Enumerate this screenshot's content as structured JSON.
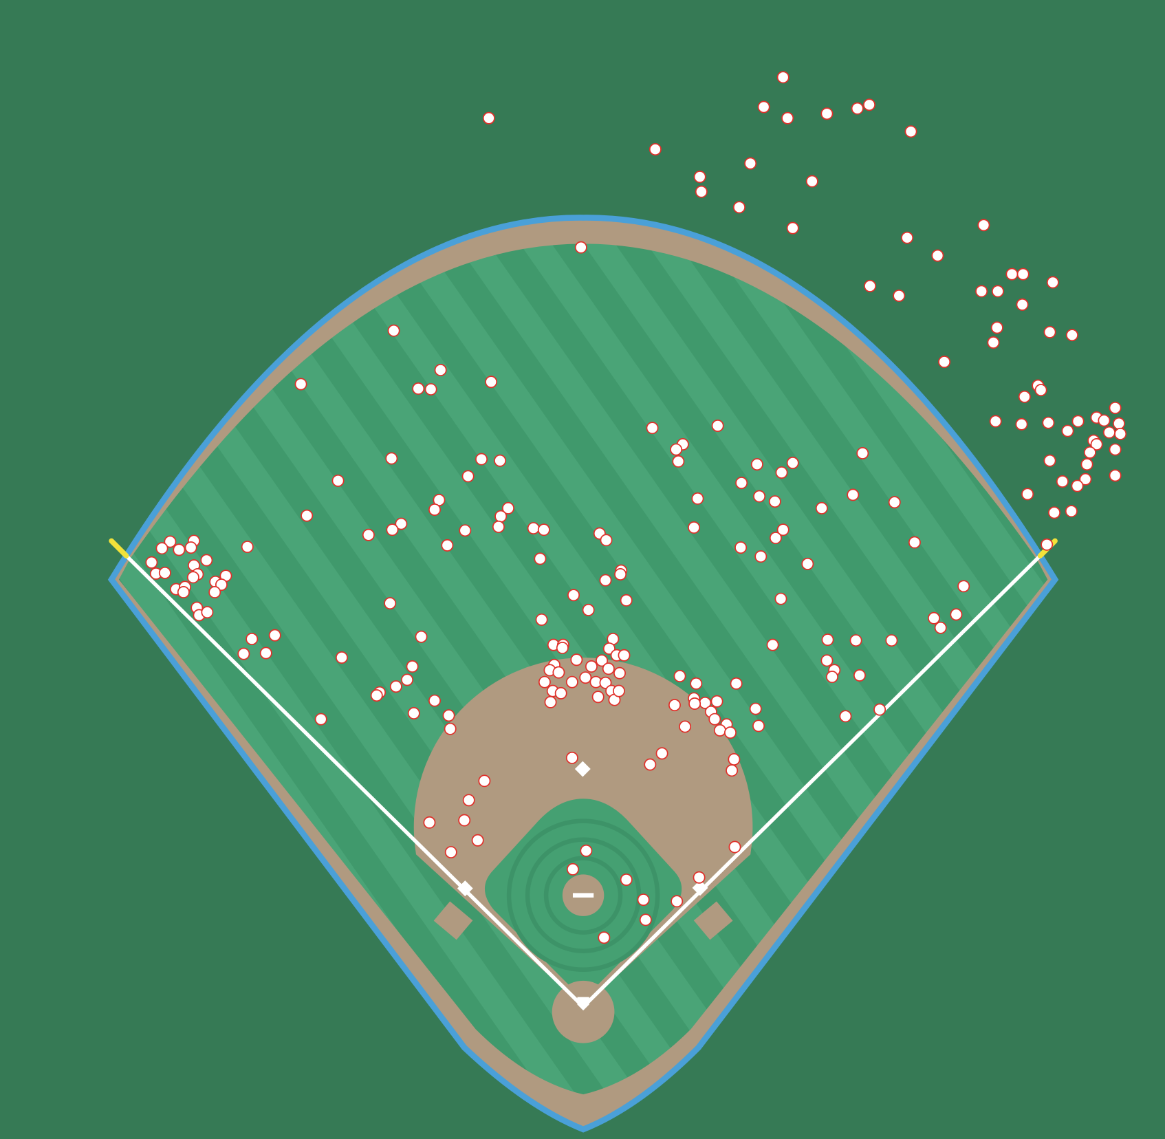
{
  "chart_data": {
    "type": "scatter",
    "color": "#ffffff",
    "edgecolor": "#e0302a",
    "x": [
      -50.8,
      107.6,
      97.2,
      110,
      131.2,
      147.6,
      154,
      176.4,
      38.8,
      90,
      62.8,
      63.6,
      123.2,
      84,
      112.8,
      215.6,
      174.4,
      190.8,
      230.8,
      236.8,
      252.8,
      154.4,
      170,
      214.4,
      223.2,
      236.4,
      222.8,
      251.2,
      263.2,
      220.8,
      194.4,
      244.8,
      246.4,
      237.6,
      222,
      236,
      250.4,
      260.8,
      266.4,
      276.4,
      280.4,
      286.4,
      288.4,
      283.2,
      289.2,
      274.8,
      276.4,
      272.8,
      286.4,
      251.2,
      271.2,
      270.4,
      258,
      266,
      286.4,
      239.2,
      253.6,
      262.8,
      249.6,
      -1.2,
      -102,
      -152,
      -76.8,
      -88.8,
      -82,
      -49.6,
      37.2,
      72.4,
      53.6,
      50,
      51.2,
      150.4,
      -103.2,
      -54.8,
      -44.8,
      -62,
      -132,
      93.6,
      112.8,
      106.8,
      85.2,
      61.6,
      94.8,
      103.2,
      145.2,
      128.4,
      167.6,
      -77.6,
      -80,
      -40.4,
      -44.4,
      -45.6,
      -148.8,
      -98,
      -102.8,
      -115.6,
      -63.6,
      -26.8,
      -21.2,
      -73.2,
      -23.2,
      59.6,
      107.6,
      103.6,
      84.8,
      95.6,
      120.8,
      178.4,
      8.8,
      12.4,
      20.4,
      20,
      12,
      23.2,
      -5.2,
      2.8,
      106.4,
      204.8,
      200.8,
      188.8,
      192.4,
      -180.8,
      -222.4,
      -226.8,
      -217.6,
      -209.6,
      -211.2,
      -232.4,
      -230,
      -225.2,
      -202.8,
      -209.6,
      -207.6,
      -210,
      -192.4,
      -198,
      -194.8,
      -219.2,
      -214.4,
      -215.2,
      -198.4,
      -208,
      -206.8,
      -202.4,
      -104,
      -22.4,
      -87.2,
      -178.4,
      -166,
      -182.8,
      -170.8,
      -130,
      -16,
      -10.8,
      -11.2,
      16,
      14,
      18,
      22,
      -3.6,
      4.4,
      10,
      -15.6,
      -18,
      -13.2,
      13.6,
      19.6,
      1.2,
      -6,
      -20.8,
      -16.4,
      -12,
      6.8,
      12,
      15.2,
      8,
      16.8,
      19.2,
      -17.6,
      -92,
      -94.8,
      -100.8,
      -109.6,
      -111.2,
      -80,
      -72.4,
      -91.2,
      -71.6,
      -141.2,
      102,
      131.6,
      146.8,
      166,
      131.2,
      135.2,
      134,
      148.8,
      141.2,
      159.6,
      52,
      60.8,
      82.4,
      59.6,
      65.6,
      72,
      49.2,
      60,
      68.8,
      70.8,
      77.2,
      73.6,
      79.2,
      54.8,
      92.8,
      94.4,
      -6,
      36,
      42.4,
      81.2,
      80,
      -53.2,
      -61.6,
      -64,
      -56.8,
      -82.8,
      -71.2,
      81.6,
      1.6,
      -5.6,
      23.2,
      62.4,
      32.4,
      50.4,
      33.6,
      11.2
    ],
    "y": [
      478.4,
      500.4,
      484.4,
      478.4,
      480.8,
      483.6,
      485.6,
      471.2,
      461.6,
      454,
      446.8,
      438.8,
      444.4,
      430.4,
      419.2,
      420.8,
      414,
      404.4,
      394.4,
      394.4,
      390,
      388,
      382.8,
      385.2,
      385.2,
      378,
      365.6,
      363.2,
      361.6,
      357.6,
      347.2,
      334.4,
      332,
      328.4,
      315.2,
      313.6,
      314.4,
      310,
      315.2,
      317.2,
      315.6,
      322.4,
      314,
      309.2,
      308.4,
      304.8,
      302.8,
      298.4,
      300,
      294,
      292,
      284,
      282.8,
      280.4,
      286,
      276,
      266,
      266.8,
      248.8,
      408.8,
      364,
      335.2,
      342.8,
      332.8,
      332.4,
      336.4,
      311.6,
      312.8,
      302.8,
      300,
      293.6,
      298,
      295.2,
      294.8,
      294,
      285.6,
      283.2,
      292,
      292.8,
      287.6,
      282,
      273.6,
      274.8,
      272,
      275.6,
      268.4,
      271.6,
      272.8,
      267.6,
      268.4,
      264,
      258.4,
      264.4,
      260,
      256.8,
      254,
      256.4,
      257.6,
      256.8,
      248.4,
      241.2,
      258,
      256.8,
      252.4,
      247.2,
      242.4,
      238.4,
      250,
      254.8,
      251.2,
      234.8,
      232.8,
      229.6,
      218.8,
      221.6,
      213.6,
      219.6,
      226.4,
      211.2,
      209.2,
      204,
      247.6,
      250.4,
      246.8,
      246,
      250.8,
      247.2,
      239.2,
      233.2,
      233.6,
      240.4,
      237.6,
      232.8,
      231.2,
      232,
      228.8,
      227.2,
      224.8,
      226,
      223.2,
      223.2,
      214.8,
      210.8,
      212.4,
      217.2,
      208.4,
      199.2,
      198,
      200,
      190,
      190.4,
      188,
      194.8,
      194.8,
      193.2,
      198,
      192.8,
      189.2,
      189.2,
      186.8,
      183.2,
      186.4,
      184,
      181.2,
      180,
      182,
      179.6,
      177.2,
      174.8,
      174.8,
      170,
      168.8,
      174.8,
      174.4,
      170,
      166.8,
      165.2,
      170,
      164,
      183.2,
      176,
      172.4,
      169.2,
      167.6,
      164.8,
      156.8,
      158,
      149.6,
      154.8,
      194.8,
      197.6,
      197.2,
      197.2,
      186.4,
      181.2,
      177.6,
      178.4,
      156.4,
      160,
      178,
      174,
      174,
      166,
      163.6,
      164.4,
      162.4,
      163.2,
      158.8,
      154.8,
      152,
      148.8,
      147.6,
      150.8,
      160.4,
      151.2,
      134,
      130.4,
      136.4,
      133.2,
      127.2,
      121.6,
      111.2,
      100.4,
      89.6,
      99.2,
      83.2,
      86,
      84,
      74,
      68.4,
      69.6,
      57.6,
      56.8,
      46.8,
      37.2
    ]
  }
}
